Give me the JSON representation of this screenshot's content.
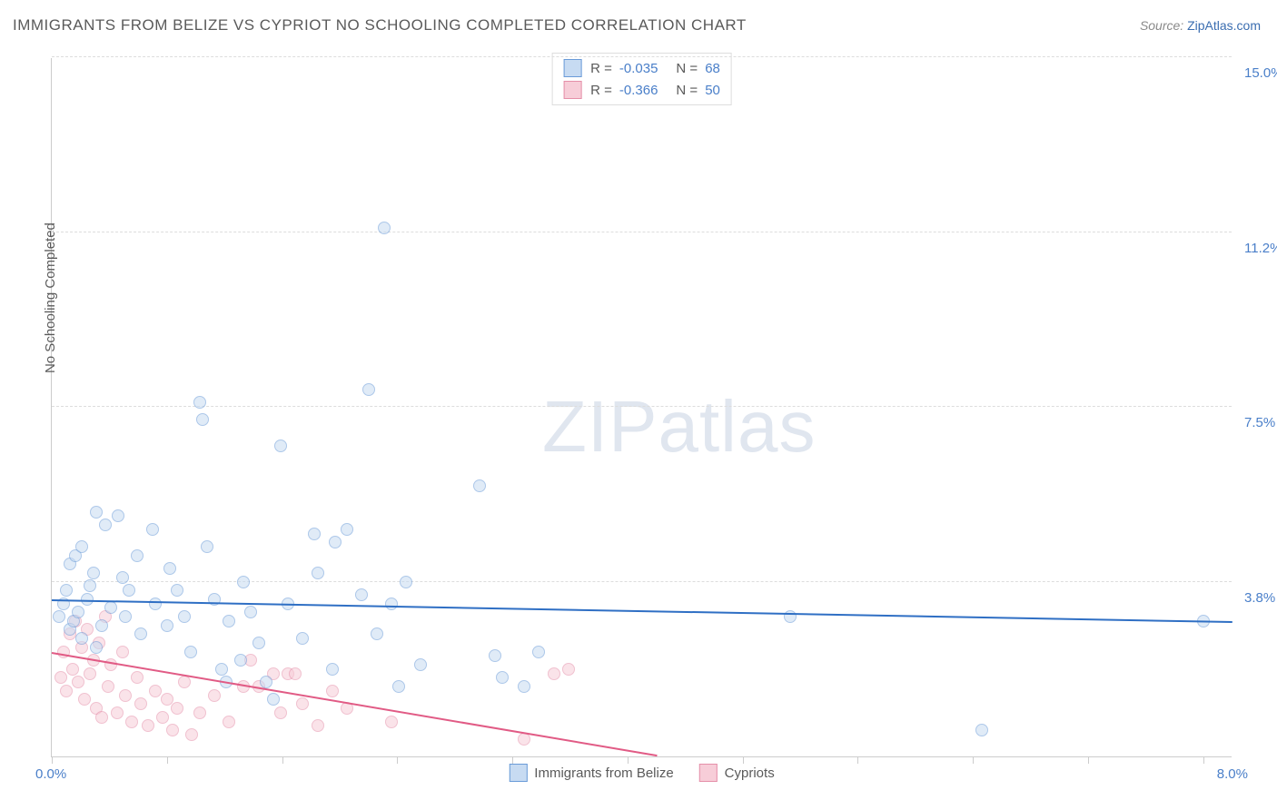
{
  "title": "IMMIGRANTS FROM BELIZE VS CYPRIOT NO SCHOOLING COMPLETED CORRELATION CHART",
  "source": {
    "label": "Source:",
    "link": "ZipAtlas.com"
  },
  "y_axis_label": "No Schooling Completed",
  "watermark": {
    "zip": "ZIP",
    "atlas": "atlas"
  },
  "chart": {
    "type": "scatter",
    "background_color": "#ffffff",
    "grid_color": "#dddddd",
    "axis_color": "#cccccc",
    "xlim": [
      0.0,
      8.0
    ],
    "ylim": [
      0.0,
      16.0
    ],
    "x_origin_label": "0.0%",
    "x_max_label": "8.0%",
    "x_tick_positions": [
      0.0,
      0.78,
      1.56,
      2.34,
      3.12,
      3.9,
      4.68,
      5.46,
      6.24,
      7.02,
      7.8
    ],
    "y_gridlines": [
      {
        "value": 4.0,
        "label": "3.8%"
      },
      {
        "value": 8.0,
        "label": "7.5%"
      },
      {
        "value": 12.0,
        "label": "11.2%"
      },
      {
        "value": 16.0,
        "label": "15.0%"
      }
    ],
    "point_radius": 7,
    "series": [
      {
        "name": "Immigrants from Belize",
        "fill": "#c7dbf2",
        "fill_opacity": 0.55,
        "stroke": "#6a9bd8",
        "trend_color": "#2f6fc4",
        "trend_width": 2,
        "r": "-0.035",
        "n": "68",
        "trend": {
          "x1": 0.0,
          "y1": 3.55,
          "x2": 8.0,
          "y2": 3.05
        },
        "points": [
          [
            0.05,
            3.2
          ],
          [
            0.08,
            3.5
          ],
          [
            0.1,
            3.8
          ],
          [
            0.12,
            2.9
          ],
          [
            0.12,
            4.4
          ],
          [
            0.15,
            3.1
          ],
          [
            0.16,
            4.6
          ],
          [
            0.18,
            3.3
          ],
          [
            0.2,
            2.7
          ],
          [
            0.2,
            4.8
          ],
          [
            0.24,
            3.6
          ],
          [
            0.26,
            3.9
          ],
          [
            0.28,
            4.2
          ],
          [
            0.3,
            5.6
          ],
          [
            0.3,
            2.5
          ],
          [
            0.34,
            3.0
          ],
          [
            0.36,
            5.3
          ],
          [
            0.4,
            3.4
          ],
          [
            0.45,
            5.5
          ],
          [
            0.48,
            4.1
          ],
          [
            0.5,
            3.2
          ],
          [
            0.52,
            3.8
          ],
          [
            0.58,
            4.6
          ],
          [
            0.6,
            2.8
          ],
          [
            0.68,
            5.2
          ],
          [
            0.7,
            3.5
          ],
          [
            0.78,
            3.0
          ],
          [
            0.8,
            4.3
          ],
          [
            0.85,
            3.8
          ],
          [
            0.9,
            3.2
          ],
          [
            0.94,
            2.4
          ],
          [
            1.0,
            8.1
          ],
          [
            1.02,
            7.7
          ],
          [
            1.05,
            4.8
          ],
          [
            1.1,
            3.6
          ],
          [
            1.15,
            2.0
          ],
          [
            1.18,
            1.7
          ],
          [
            1.2,
            3.1
          ],
          [
            1.28,
            2.2
          ],
          [
            1.3,
            4.0
          ],
          [
            1.35,
            3.3
          ],
          [
            1.4,
            2.6
          ],
          [
            1.45,
            1.7
          ],
          [
            1.5,
            1.3
          ],
          [
            1.55,
            7.1
          ],
          [
            1.6,
            3.5
          ],
          [
            1.7,
            2.7
          ],
          [
            1.78,
            5.1
          ],
          [
            1.8,
            4.2
          ],
          [
            1.9,
            2.0
          ],
          [
            1.92,
            4.9
          ],
          [
            2.0,
            5.2
          ],
          [
            2.1,
            3.7
          ],
          [
            2.15,
            8.4
          ],
          [
            2.2,
            2.8
          ],
          [
            2.25,
            12.1
          ],
          [
            2.3,
            3.5
          ],
          [
            2.35,
            1.6
          ],
          [
            2.4,
            4.0
          ],
          [
            2.5,
            2.1
          ],
          [
            2.9,
            6.2
          ],
          [
            3.0,
            2.3
          ],
          [
            3.05,
            1.8
          ],
          [
            3.2,
            1.6
          ],
          [
            3.3,
            2.4
          ],
          [
            5.0,
            3.2
          ],
          [
            6.3,
            0.6
          ],
          [
            7.8,
            3.1
          ]
        ]
      },
      {
        "name": "Cypriots",
        "fill": "#f7cdd8",
        "fill_opacity": 0.55,
        "stroke": "#e58fa9",
        "trend_color": "#e15b85",
        "trend_width": 2,
        "r": "-0.366",
        "n": "50",
        "trend": {
          "x1": 0.0,
          "y1": 2.35,
          "x2": 4.1,
          "y2": 0.0
        },
        "points": [
          [
            0.06,
            1.8
          ],
          [
            0.08,
            2.4
          ],
          [
            0.1,
            1.5
          ],
          [
            0.12,
            2.8
          ],
          [
            0.14,
            2.0
          ],
          [
            0.16,
            3.1
          ],
          [
            0.18,
            1.7
          ],
          [
            0.2,
            2.5
          ],
          [
            0.22,
            1.3
          ],
          [
            0.24,
            2.9
          ],
          [
            0.26,
            1.9
          ],
          [
            0.28,
            2.2
          ],
          [
            0.3,
            1.1
          ],
          [
            0.32,
            2.6
          ],
          [
            0.34,
            0.9
          ],
          [
            0.36,
            3.2
          ],
          [
            0.38,
            1.6
          ],
          [
            0.4,
            2.1
          ],
          [
            0.44,
            1.0
          ],
          [
            0.48,
            2.4
          ],
          [
            0.5,
            1.4
          ],
          [
            0.54,
            0.8
          ],
          [
            0.58,
            1.8
          ],
          [
            0.6,
            1.2
          ],
          [
            0.65,
            0.7
          ],
          [
            0.7,
            1.5
          ],
          [
            0.75,
            0.9
          ],
          [
            0.78,
            1.3
          ],
          [
            0.82,
            0.6
          ],
          [
            0.85,
            1.1
          ],
          [
            0.9,
            1.7
          ],
          [
            0.95,
            0.5
          ],
          [
            1.0,
            1.0
          ],
          [
            1.1,
            1.4
          ],
          [
            1.2,
            0.8
          ],
          [
            1.3,
            1.6
          ],
          [
            1.35,
            2.2
          ],
          [
            1.4,
            1.6
          ],
          [
            1.5,
            1.9
          ],
          [
            1.55,
            1.0
          ],
          [
            1.6,
            1.9
          ],
          [
            1.65,
            1.9
          ],
          [
            1.7,
            1.2
          ],
          [
            1.8,
            0.7
          ],
          [
            1.9,
            1.5
          ],
          [
            2.0,
            1.1
          ],
          [
            2.3,
            0.8
          ],
          [
            3.2,
            0.4
          ],
          [
            3.4,
            1.9
          ],
          [
            3.5,
            2.0
          ]
        ]
      }
    ]
  },
  "legend_bottom": [
    {
      "label": "Immigrants from Belize",
      "fill": "#c7dbf2",
      "stroke": "#6a9bd8"
    },
    {
      "label": "Cypriots",
      "fill": "#f7cdd8",
      "stroke": "#e58fa9"
    }
  ]
}
